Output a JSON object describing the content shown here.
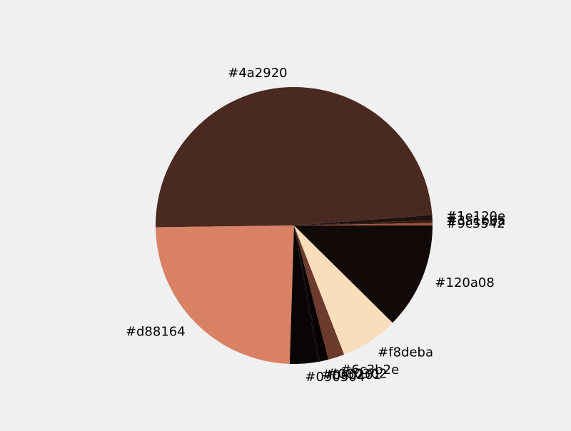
{
  "chart_data": {
    "type": "pie",
    "title": "",
    "start_angle_deg": 0,
    "direction": "counterclockwise",
    "slices": [
      {
        "label": "#9c5542",
        "value": 0.3,
        "color": "#9c5542"
      },
      {
        "label": "#3a1b0a",
        "value": 0.3,
        "color": "#3a1b0a"
      },
      {
        "label": "#1e120e",
        "value": 0.6,
        "color": "#1e120e"
      },
      {
        "label": "#4a2920",
        "value": 49.0,
        "color": "#4a2920"
      },
      {
        "label": "#d88164",
        "value": 24.3,
        "color": "#d88164"
      },
      {
        "label": "#090504",
        "value": 3.3,
        "color": "#090504"
      },
      {
        "label": "#0a0201",
        "value": 0.2,
        "color": "#0a0201"
      },
      {
        "label": "#080302",
        "value": 1.0,
        "color": "#080302"
      },
      {
        "label": "#6c3b2e",
        "value": 1.9,
        "color": "#6c3b2e"
      },
      {
        "label": "#f8deba",
        "value": 6.7,
        "color": "#f8deba"
      },
      {
        "label": "#120a08",
        "value": 12.4,
        "color": "#120a08"
      }
    ]
  }
}
